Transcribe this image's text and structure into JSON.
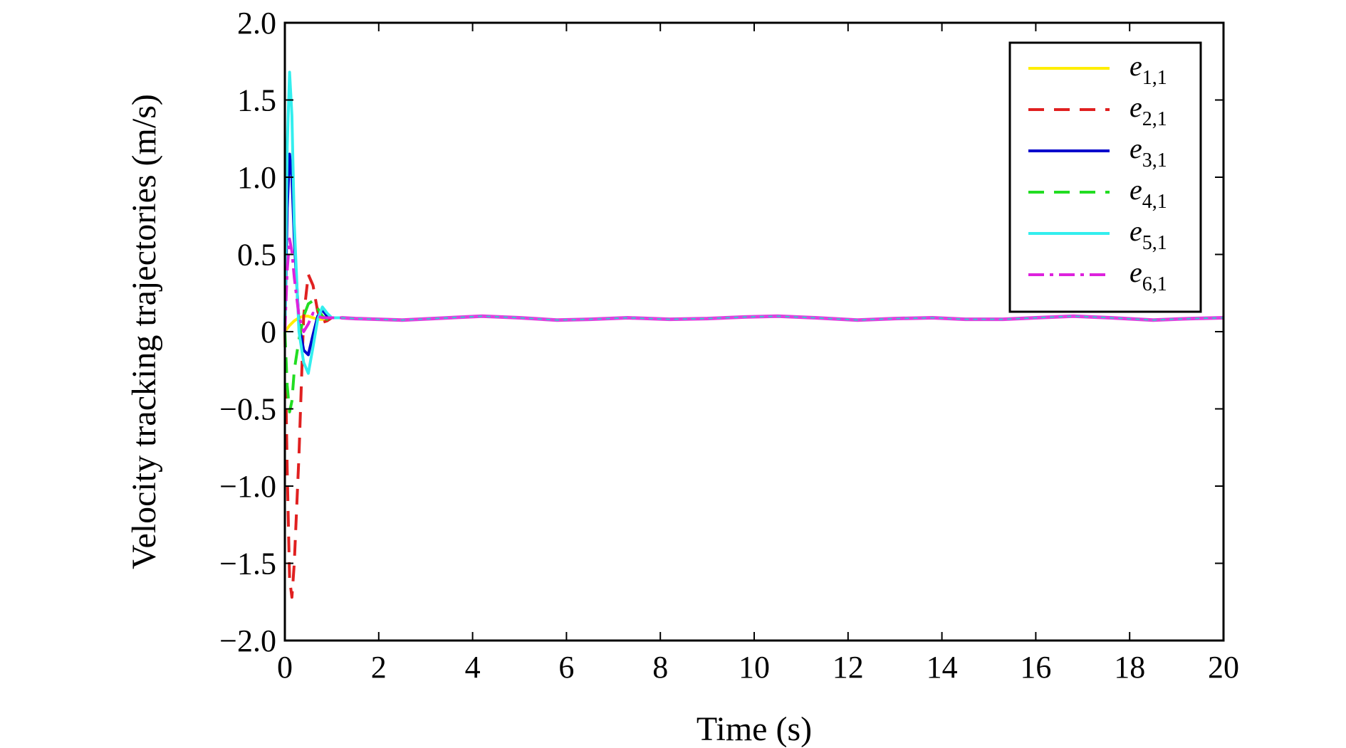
{
  "chart_data": {
    "type": "line",
    "title": "",
    "xlabel": "Time (s)",
    "ylabel": "Velocity tracking trajectories (m/s)",
    "xlim": [
      0,
      20
    ],
    "ylim": [
      -2.0,
      2.0
    ],
    "xticks": [
      "0",
      "2",
      "4",
      "6",
      "8",
      "10",
      "12",
      "14",
      "16",
      "18",
      "20"
    ],
    "yticks": [
      "2.0",
      "1.5",
      "1.0",
      "0.5",
      "0",
      "−0.5",
      "−1.0",
      "−1.5",
      "−2.0"
    ],
    "grid": false,
    "legend_position": "top-right",
    "series": [
      {
        "name": "e",
        "sub": "1,1",
        "color": "#ffee00",
        "dash": "solid",
        "x": [
          0,
          0.1,
          0.2,
          0.3,
          0.4,
          0.5,
          0.6,
          0.7,
          0.8,
          0.9,
          1.0,
          1.2
        ],
        "y": [
          0.0,
          0.04,
          0.07,
          0.09,
          0.1,
          0.1,
          0.09,
          0.08,
          0.08,
          0.08,
          0.09,
          0.09
        ]
      },
      {
        "name": "e",
        "sub": "2,1",
        "color": "#e02020",
        "dash": "dashed",
        "x": [
          0,
          0.05,
          0.1,
          0.15,
          0.2,
          0.3,
          0.4,
          0.5,
          0.6,
          0.7,
          0.8,
          0.9,
          1.0,
          1.2
        ],
        "y": [
          0.0,
          -0.9,
          -1.6,
          -1.72,
          -1.5,
          -0.8,
          0.1,
          0.37,
          0.3,
          0.13,
          0.06,
          0.07,
          0.09,
          0.09
        ]
      },
      {
        "name": "e",
        "sub": "3,1",
        "color": "#0000cc",
        "dash": "solid",
        "x": [
          0,
          0.05,
          0.1,
          0.15,
          0.2,
          0.3,
          0.4,
          0.5,
          0.6,
          0.7,
          0.8,
          0.9,
          1.0,
          1.2
        ],
        "y": [
          0.0,
          0.8,
          1.15,
          1.0,
          0.6,
          0.05,
          -0.12,
          -0.15,
          -0.02,
          0.1,
          0.14,
          0.1,
          0.09,
          0.09
        ]
      },
      {
        "name": "e",
        "sub": "4,1",
        "color": "#22dd22",
        "dash": "dashed",
        "x": [
          0,
          0.05,
          0.1,
          0.15,
          0.2,
          0.3,
          0.4,
          0.5,
          0.6,
          0.7,
          0.8,
          0.9,
          1.0,
          1.2
        ],
        "y": [
          0.0,
          -0.35,
          -0.52,
          -0.45,
          -0.25,
          -0.05,
          0.1,
          0.18,
          0.2,
          0.15,
          0.1,
          0.08,
          0.09,
          0.09
        ]
      },
      {
        "name": "e",
        "sub": "5,1",
        "color": "#33eeee",
        "dash": "solid",
        "x": [
          0,
          0.05,
          0.1,
          0.15,
          0.2,
          0.3,
          0.4,
          0.5,
          0.6,
          0.7,
          0.8,
          0.9,
          1.0,
          1.2
        ],
        "y": [
          0.0,
          1.2,
          1.68,
          1.4,
          0.7,
          0.0,
          -0.2,
          -0.27,
          -0.1,
          0.08,
          0.16,
          0.12,
          0.09,
          0.09
        ]
      },
      {
        "name": "e",
        "sub": "6,1",
        "color": "#dd22dd",
        "dash": "dashdot",
        "x": [
          0,
          0.05,
          0.1,
          0.15,
          0.2,
          0.3,
          0.4,
          0.5,
          0.6,
          0.7,
          0.8,
          0.9,
          1.0,
          1.2
        ],
        "y": [
          0.0,
          0.4,
          0.6,
          0.52,
          0.35,
          0.1,
          0.0,
          0.05,
          0.12,
          0.1,
          0.09,
          0.09,
          0.09,
          0.09
        ]
      }
    ],
    "steady_state": {
      "x": [
        1.2,
        1.5,
        2.5,
        3.5,
        4.2,
        5.0,
        5.8,
        6.5,
        7.3,
        8.2,
        9.0,
        9.8,
        10.5,
        11.3,
        12.2,
        13.0,
        13.8,
        14.5,
        15.3,
        16.0,
        16.8,
        17.6,
        18.5,
        19.3,
        20.0
      ],
      "y": [
        0.09,
        0.085,
        0.075,
        0.09,
        0.1,
        0.09,
        0.075,
        0.08,
        0.09,
        0.08,
        0.085,
        0.095,
        0.1,
        0.09,
        0.075,
        0.085,
        0.09,
        0.08,
        0.08,
        0.09,
        0.1,
        0.09,
        0.075,
        0.085,
        0.09
      ],
      "color": "#e040e0",
      "overlay_color": "#33cccc"
    }
  }
}
